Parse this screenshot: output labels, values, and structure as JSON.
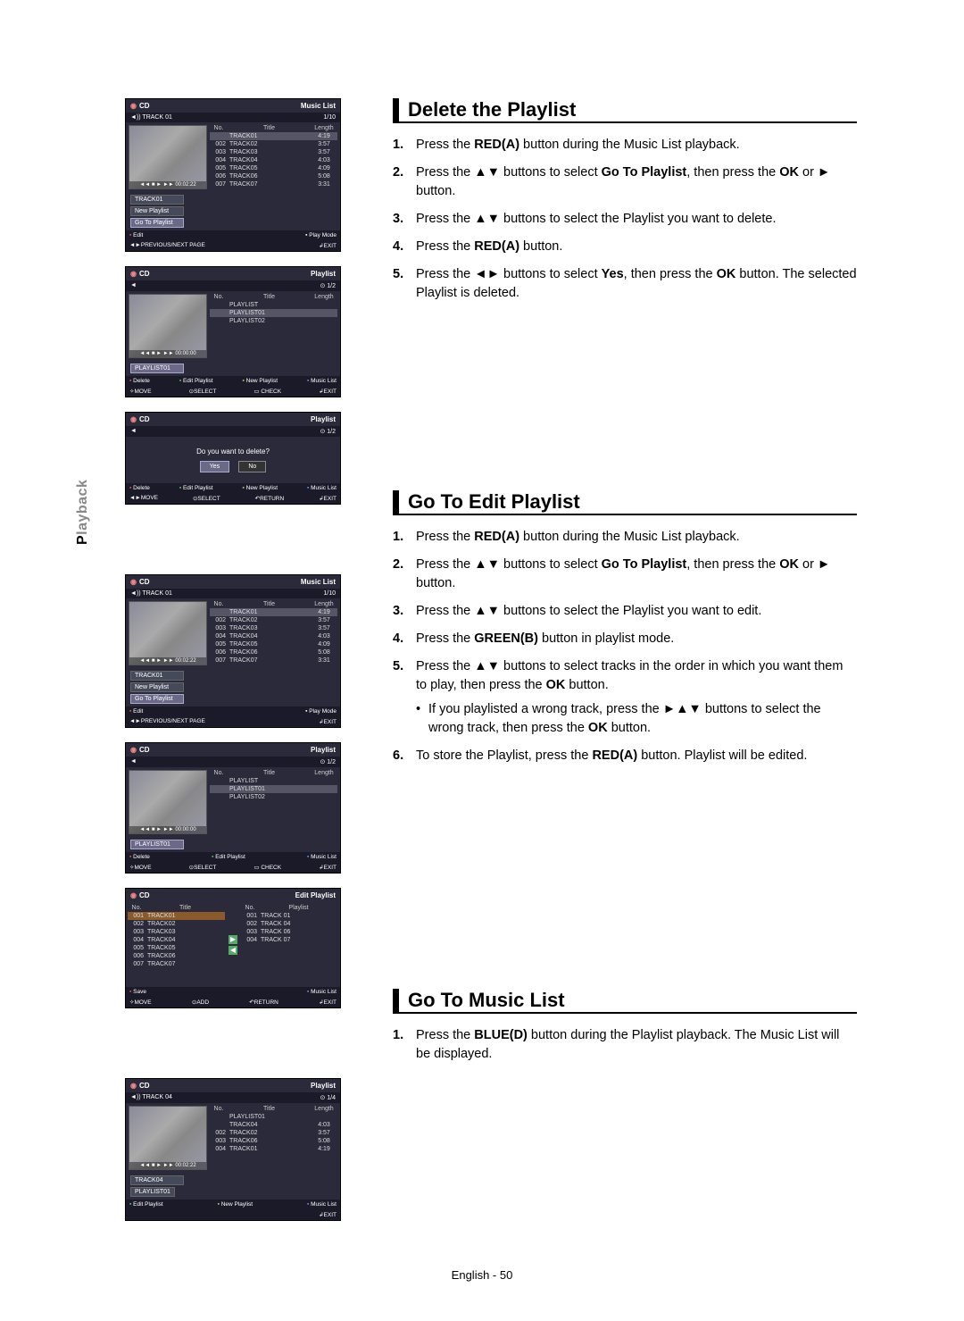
{
  "sidebar_label_gray": "layback",
  "sidebar_label_black": "P",
  "page_footer": "English - 50",
  "sections": {
    "delete": {
      "title": "Delete the Playlist",
      "steps": [
        "Press the <b>RED(A)</b> button during the Music List playback.",
        "Press the ▲▼ buttons to select <b>Go To Playlist</b>, then press the <b>OK</b> or ► button.",
        "Press the ▲▼ buttons to select the Playlist you want to delete.",
        "Press the <b>RED(A)</b> button.",
        "Press the ◄► buttons to select <b>Yes</b>, then press the <b>OK</b> button. The selected Playlist is deleted."
      ]
    },
    "edit": {
      "title": "Go To Edit Playlist",
      "steps": [
        "Press the <b>RED(A)</b> button during the Music List playback.",
        "Press the ▲▼ buttons to select <b>Go To Playlist</b>, then press the <b>OK</b> or ► button.",
        "Press the ▲▼ buttons to select the Playlist you want to edit.",
        "Press the <b>GREEN(B)</b> button in playlist mode.",
        "Press the ▲▼ buttons to select tracks in the order in which you want them to play, then press the <b>OK</b> button.",
        "To store the Playlist, press the <b>RED(A)</b> button. Playlist will be edited."
      ],
      "sub_of_5": "If you playlisted a wrong track, press the ►▲▼ buttons to select the wrong track, then press the <b>OK</b> button."
    },
    "musiclist": {
      "title": "Go To Music List",
      "steps": [
        "Press the <b>BLUE(D)</b> button during the Playlist playback. The Music List will be displayed."
      ]
    }
  },
  "minis": {
    "track_rows": [
      {
        "n": "",
        "t": "TRACK01",
        "l": "4:19",
        "sel": true
      },
      {
        "n": "002",
        "t": "TRACK02",
        "l": "3:57"
      },
      {
        "n": "003",
        "t": "TRACK03",
        "l": "3:57"
      },
      {
        "n": "004",
        "t": "TRACK04",
        "l": "4:03"
      },
      {
        "n": "005",
        "t": "TRACK05",
        "l": "4:09"
      },
      {
        "n": "006",
        "t": "TRACK06",
        "l": "5:08"
      },
      {
        "n": "007",
        "t": "TRACK07",
        "l": "3:31"
      }
    ],
    "playlist_rows": [
      {
        "t": "PLAYLIST"
      },
      {
        "t": "PLAYLIST01",
        "sel": true
      },
      {
        "t": "PLAYLIST02"
      }
    ],
    "edit_left": [
      {
        "n": "001",
        "t": "TRACK01",
        "hl": true
      },
      {
        "n": "002",
        "t": "TRACK02"
      },
      {
        "n": "003",
        "t": "TRACK03"
      },
      {
        "n": "004",
        "t": "TRACK04"
      },
      {
        "n": "005",
        "t": "TRACK05"
      },
      {
        "n": "006",
        "t": "TRACK06"
      },
      {
        "n": "007",
        "t": "TRACK07"
      }
    ],
    "edit_right": [
      {
        "n": "001",
        "t": "TRACK 01"
      },
      {
        "n": "002",
        "t": "TRACK 04"
      },
      {
        "n": "003",
        "t": "TRACK 06"
      },
      {
        "n": "004",
        "t": "TRACK 07"
      }
    ],
    "ml_rows": [
      {
        "n": "",
        "t": "PLAYLIST01"
      },
      {
        "n": "",
        "t": "TRACK04",
        "l": "4:03"
      },
      {
        "n": "002",
        "t": "TRACK02",
        "l": "3:57"
      },
      {
        "n": "003",
        "t": "TRACK06",
        "l": "5:08"
      },
      {
        "n": "004",
        "t": "TRACK01",
        "l": "4:19"
      }
    ],
    "labels": {
      "cd": "CD",
      "music_list": "Music List",
      "playlist": "Playlist",
      "edit_playlist_hdr": "Edit Playlist",
      "track": "TRACK 01",
      "track04": "TRACK 04",
      "page_1_10": "1/10",
      "page_1_2": "1/2",
      "page_1_4": "1/4",
      "no": "No.",
      "title": "Title",
      "length": "Length",
      "playlist_col": "Playlist",
      "ctrl": "◄◄ ■ ► ►► 00:02:22",
      "ctrl2": "◄◄ ■ ► ►► 00:00:00",
      "opt_track01": "TRACK01",
      "opt_new": "New Playlist",
      "opt_goto": "Go To Playlist",
      "opt_pl01": "PLAYLIST01",
      "opt_track04": "TRACK04",
      "dlg": "Do you want to delete?",
      "yes": "Yes",
      "no_btn": "No",
      "ftr_edit": "Edit",
      "ftr_delete": "Delete",
      "ftr_editpl": "Edit Playlist",
      "ftr_newpl": "New Playlist",
      "ftr_musiclist": "Music List",
      "ftr_save": "Save",
      "ftr_prev": "PREVIOUS/NEXT PAGE",
      "ftr_play": "Play Mode",
      "ftr_move": "MOVE",
      "ftr_select": "SELECT",
      "ftr_check": "CHECK",
      "ftr_return": "RETURN",
      "ftr_add": "ADD",
      "ftr_exit": "EXIT"
    }
  }
}
